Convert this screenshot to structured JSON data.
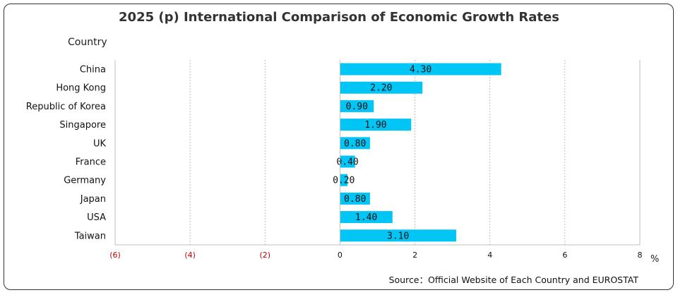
{
  "title": "2025 (p) International Comparison of Economic Growth Rates",
  "y_axis_title": "Country",
  "unit": "%",
  "source": "Source：Official Website of Each Country and EUROSTAT",
  "colors": {
    "bar": "#00C5F5",
    "negative_tick": "#C00000",
    "grid": "#BFBFBF"
  },
  "chart_data": {
    "type": "bar",
    "orientation": "horizontal",
    "categories": [
      "China",
      "Hong Kong",
      "Republic of Korea",
      "Singapore",
      "UK",
      "France",
      "Germany",
      "Japan",
      "USA",
      "Taiwan"
    ],
    "values": [
      4.3,
      2.2,
      0.9,
      1.9,
      0.8,
      0.4,
      0.2,
      0.8,
      1.4,
      3.1
    ],
    "data_labels": [
      "4.30",
      "2.20",
      "0.90",
      "1.90",
      "0.80",
      "0.40",
      "0.20",
      "0.80",
      "1.40",
      "3.10"
    ],
    "xlim": [
      -6,
      8
    ],
    "x_ticks": [
      -6,
      -4,
      -2,
      0,
      2,
      4,
      6,
      8
    ],
    "x_tick_labels": [
      "(6)",
      "(4)",
      "(2)",
      "0",
      "2",
      "4",
      "6",
      "8"
    ],
    "grid": true
  }
}
